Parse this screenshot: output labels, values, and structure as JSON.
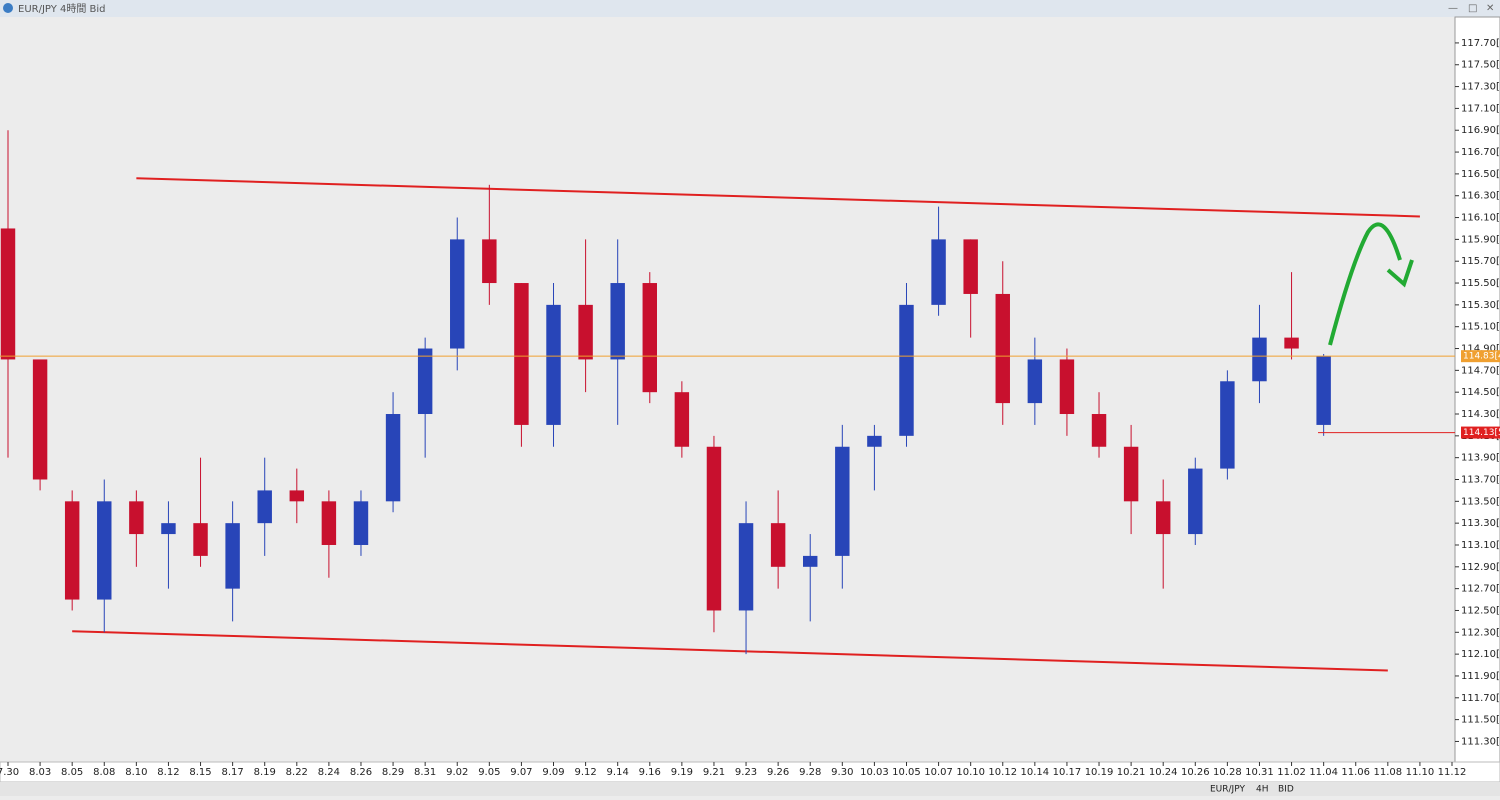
{
  "ui": {
    "window_title": "EUR/JPY 4時間 Bid",
    "status_bar": [
      "EUR/JPY",
      "4H",
      "BID"
    ]
  },
  "chart_data": {
    "type": "candlestick",
    "categories": [
      "7.30",
      "8.03",
      "8.05",
      "8.08",
      "8.10",
      "8.12",
      "8.15",
      "8.17",
      "8.19",
      "8.22",
      "8.24",
      "8.26",
      "8.29",
      "8.31",
      "9.02",
      "9.05",
      "9.07",
      "9.09",
      "9.12",
      "9.14",
      "9.16",
      "9.19",
      "9.21",
      "9.23",
      "9.26",
      "9.28",
      "9.30",
      "10.03",
      "10.05",
      "10.07",
      "10.10",
      "10.12",
      "10.14",
      "10.17",
      "10.19",
      "10.21",
      "10.24",
      "10.26",
      "10.28",
      "10.31",
      "11.02",
      "11.04",
      "11.06",
      "11.08",
      "11.10",
      "11.12"
    ],
    "open": [
      116.0,
      114.8,
      113.5,
      112.6,
      113.5,
      113.2,
      113.3,
      112.7,
      113.3,
      113.6,
      113.5,
      113.1,
      113.5,
      114.3,
      114.9,
      115.9,
      115.5,
      114.2,
      115.3,
      114.8,
      115.5,
      114.5,
      114.0,
      112.5,
      113.3,
      112.9,
      113.0,
      114.0,
      114.1,
      115.3,
      115.9,
      115.4,
      114.4,
      114.8,
      114.3,
      114.0,
      113.5,
      113.2,
      113.8,
      114.6,
      115.0,
      114.2,
      null,
      null,
      null,
      null
    ],
    "high": [
      116.9,
      114.8,
      113.6,
      113.7,
      113.6,
      113.5,
      113.9,
      113.5,
      113.9,
      113.8,
      113.6,
      113.6,
      114.5,
      115.0,
      116.1,
      116.4,
      115.5,
      115.5,
      115.9,
      115.9,
      115.6,
      114.6,
      114.1,
      113.5,
      113.6,
      113.2,
      114.2,
      114.2,
      115.5,
      116.2,
      115.9,
      115.7,
      115.0,
      114.9,
      114.5,
      114.2,
      113.7,
      113.9,
      114.7,
      115.3,
      115.6,
      114.85,
      null,
      null,
      null,
      null
    ],
    "low": [
      113.9,
      113.6,
      112.5,
      112.3,
      112.9,
      112.7,
      112.9,
      112.4,
      113.0,
      113.3,
      112.8,
      113.0,
      113.4,
      113.9,
      114.7,
      115.3,
      114.0,
      114.0,
      114.5,
      114.2,
      114.4,
      113.9,
      112.3,
      112.1,
      112.7,
      112.4,
      112.7,
      113.6,
      114.0,
      115.2,
      115.0,
      114.2,
      114.2,
      114.1,
      113.9,
      113.2,
      112.7,
      113.1,
      113.7,
      114.4,
      114.8,
      114.1,
      null,
      null,
      null,
      null
    ],
    "close": [
      114.8,
      113.7,
      112.6,
      113.5,
      113.2,
      113.3,
      113.0,
      113.3,
      113.6,
      113.5,
      113.1,
      113.5,
      114.3,
      114.9,
      115.9,
      115.5,
      114.2,
      115.3,
      114.8,
      115.5,
      114.5,
      114.0,
      112.5,
      113.3,
      112.9,
      113.0,
      114.0,
      114.1,
      115.3,
      115.9,
      115.4,
      114.4,
      114.8,
      114.3,
      114.0,
      113.5,
      113.2,
      113.8,
      114.6,
      115.0,
      114.9,
      114.83,
      null,
      null,
      null,
      null
    ],
    "up_color": "#2845b8",
    "down_color": "#c8102e",
    "ylim": [
      111.13,
      117.91
    ],
    "yticks": [
      {
        "value": 117.7,
        "label": "117.70[0"
      },
      {
        "value": 117.5,
        "label": "117.50[0"
      },
      {
        "value": 117.3,
        "label": "117.30[0"
      },
      {
        "value": 117.1,
        "label": "117.10[0"
      },
      {
        "value": 116.9,
        "label": "116.90[0"
      },
      {
        "value": 116.7,
        "label": "116.70[0"
      },
      {
        "value": 116.5,
        "label": "116.50[0"
      },
      {
        "value": 116.3,
        "label": "116.30[0"
      },
      {
        "value": 116.1,
        "label": "116.10[0"
      },
      {
        "value": 115.9,
        "label": "115.90[0"
      },
      {
        "value": 115.7,
        "label": "115.70[0"
      },
      {
        "value": 115.5,
        "label": "115.50[0"
      },
      {
        "value": 115.3,
        "label": "115.30[0"
      },
      {
        "value": 115.1,
        "label": "115.10[0"
      },
      {
        "value": 114.9,
        "label": "114.90[0"
      },
      {
        "value": 114.7,
        "label": "114.70[0"
      },
      {
        "value": 114.5,
        "label": "114.50[0"
      },
      {
        "value": 114.3,
        "label": "114.30[0"
      },
      {
        "value": 114.1,
        "label": "114.10[0"
      },
      {
        "value": 113.9,
        "label": "113.90[0"
      },
      {
        "value": 113.7,
        "label": "113.70[0"
      },
      {
        "value": 113.5,
        "label": "113.50[0"
      },
      {
        "value": 113.3,
        "label": "113.30[0"
      },
      {
        "value": 113.1,
        "label": "113.10[0"
      },
      {
        "value": 112.9,
        "label": "112.90[0"
      },
      {
        "value": 112.7,
        "label": "112.70[0"
      },
      {
        "value": 112.5,
        "label": "112.50[0"
      },
      {
        "value": 112.3,
        "label": "112.30[0"
      },
      {
        "value": 112.1,
        "label": "112.10[0"
      },
      {
        "value": 111.9,
        "label": "111.90[0"
      },
      {
        "value": 111.7,
        "label": "111.70[0"
      },
      {
        "value": 111.5,
        "label": "111.50[0"
      },
      {
        "value": 111.3,
        "label": "111.30[0"
      }
    ],
    "price_lines": [
      {
        "value": 114.83,
        "label": "114.83[4",
        "color": "#f0a030"
      },
      {
        "value": 114.13,
        "label": "114.13[5",
        "color": "#e02020"
      }
    ],
    "trendlines": [
      {
        "x": [
          "8.10",
          "11.10"
        ],
        "values": [
          116.46,
          116.11
        ],
        "color": "#e02020"
      },
      {
        "x": [
          "8.05",
          "11.08"
        ],
        "values": [
          112.31,
          111.95
        ],
        "color": "#e02020"
      }
    ]
  }
}
